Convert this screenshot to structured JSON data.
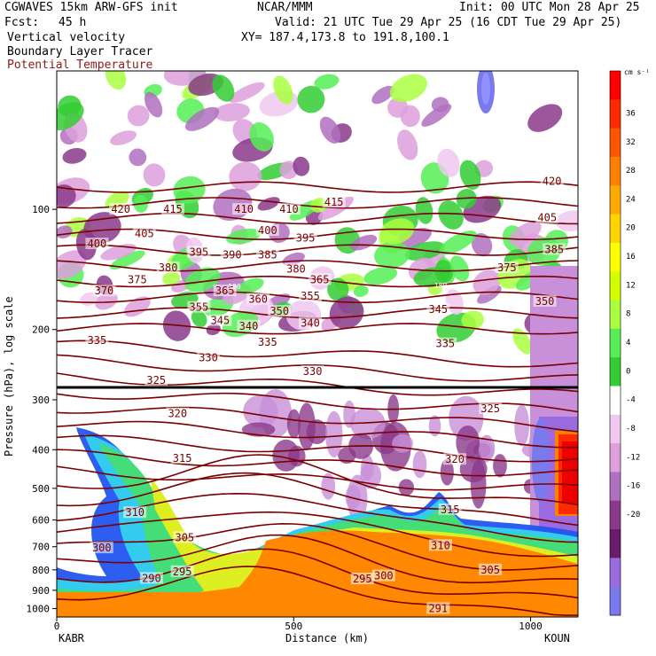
{
  "header": {
    "model": "CGWAVES 15km ARW-GFS init",
    "org": "NCAR/MMM",
    "init": "Init: 00 UTC Mon 28 Apr 25",
    "fcst_label": "Fcst:",
    "fcst_value": "45 h",
    "valid": "Valid: 21 UTC Tue 29 Apr 25 (16 CDT Tue 29 Apr 25)",
    "field1": "Vertical velocity",
    "field2": "Boundary Layer Tracer",
    "field3": "Potential Temperature",
    "xy": "XY= 187.4,173.8 to 191.8,100.1"
  },
  "axes": {
    "ylabel": "Pressure (hPa), log scale",
    "xlabel": "Distance (km)",
    "left_station": "KABR",
    "right_station": "KOUN"
  },
  "colorbar": {
    "units": "cm s⁻¹",
    "ticks": [
      "36",
      "32",
      "28",
      "24",
      "20",
      "16",
      "12",
      "8",
      "4",
      "0",
      "-4",
      "-8",
      "-12",
      "-16",
      "-20"
    ],
    "colors": [
      "#ff0000",
      "#ff2a00",
      "#ff5500",
      "#ff7f00",
      "#ffaa00",
      "#ffd400",
      "#ffff00",
      "#d4ff00",
      "#aaff40",
      "#55ee55",
      "#33cc33",
      "#ffffff",
      "#f0c8f0",
      "#dda0dd",
      "#b070c0",
      "#8b3a8b",
      "#6a1b6a",
      "#9a6adf",
      "#7a7aee"
    ]
  },
  "colors": {
    "theta": "#7a0000",
    "tropopause": "#000000"
  },
  "chart_data": {
    "type": "heatmap",
    "title": "Vertical velocity",
    "xlabel": "Distance (km)",
    "ylabel": "Pressure (hPa), log scale",
    "x_ticks": [
      "0",
      "500",
      "1000"
    ],
    "xlim": [
      0,
      1100
    ],
    "y_ticks": [
      "100",
      "200",
      "300",
      "400",
      "500",
      "600",
      "700",
      "800",
      "900",
      "1000"
    ],
    "y_scale": "log",
    "ylim": [
      1050,
      45
    ],
    "theta_contours": [
      {
        "label": "420",
        "x": 135,
        "p": 100
      },
      {
        "label": "415",
        "x": 245,
        "p": 100
      },
      {
        "label": "410",
        "x": 395,
        "p": 100
      },
      {
        "label": "410",
        "x": 490,
        "p": 100
      },
      {
        "label": "415",
        "x": 585,
        "p": 96
      },
      {
        "label": "420",
        "x": 1045,
        "p": 85
      },
      {
        "label": "405",
        "x": 1035,
        "p": 105
      },
      {
        "label": "400",
        "x": 85,
        "p": 122
      },
      {
        "label": "405",
        "x": 185,
        "p": 115
      },
      {
        "label": "400",
        "x": 445,
        "p": 113
      },
      {
        "label": "395",
        "x": 525,
        "p": 118
      },
      {
        "label": "395",
        "x": 300,
        "p": 128
      },
      {
        "label": "390",
        "x": 370,
        "p": 130
      },
      {
        "label": "385",
        "x": 445,
        "p": 130
      },
      {
        "label": "385",
        "x": 1050,
        "p": 126
      },
      {
        "label": "380",
        "x": 235,
        "p": 140
      },
      {
        "label": "380",
        "x": 505,
        "p": 141
      },
      {
        "label": "375",
        "x": 170,
        "p": 150
      },
      {
        "label": "375",
        "x": 950,
        "p": 140
      },
      {
        "label": "370",
        "x": 100,
        "p": 160
      },
      {
        "label": "365",
        "x": 355,
        "p": 160
      },
      {
        "label": "365",
        "x": 555,
        "p": 150
      },
      {
        "label": "360",
        "x": 425,
        "p": 168
      },
      {
        "label": "355",
        "x": 300,
        "p": 176
      },
      {
        "label": "355",
        "x": 535,
        "p": 165
      },
      {
        "label": "350",
        "x": 470,
        "p": 180
      },
      {
        "label": "350",
        "x": 1030,
        "p": 170
      },
      {
        "label": "345",
        "x": 345,
        "p": 190
      },
      {
        "label": "345",
        "x": 805,
        "p": 178
      },
      {
        "label": "340",
        "x": 405,
        "p": 196
      },
      {
        "label": "340",
        "x": 535,
        "p": 193
      },
      {
        "label": "335",
        "x": 85,
        "p": 213
      },
      {
        "label": "335",
        "x": 445,
        "p": 215
      },
      {
        "label": "335",
        "x": 820,
        "p": 217
      },
      {
        "label": "330",
        "x": 320,
        "p": 235
      },
      {
        "label": "330",
        "x": 540,
        "p": 255
      },
      {
        "label": "325",
        "x": 210,
        "p": 268
      },
      {
        "label": "325",
        "x": 915,
        "p": 316
      },
      {
        "label": "320",
        "x": 255,
        "p": 325
      },
      {
        "label": "320",
        "x": 840,
        "p": 423
      },
      {
        "label": "315",
        "x": 265,
        "p": 420
      },
      {
        "label": "315",
        "x": 830,
        "p": 565
      },
      {
        "label": "310",
        "x": 165,
        "p": 575
      },
      {
        "label": "310",
        "x": 810,
        "p": 695
      },
      {
        "label": "305",
        "x": 270,
        "p": 664
      },
      {
        "label": "305",
        "x": 915,
        "p": 800
      },
      {
        "label": "300",
        "x": 95,
        "p": 705
      },
      {
        "label": "300",
        "x": 690,
        "p": 828
      },
      {
        "label": "295",
        "x": 645,
        "p": 843
      },
      {
        "label": "295",
        "x": 265,
        "p": 808
      },
      {
        "label": "290",
        "x": 200,
        "p": 840
      },
      {
        "label": "291",
        "x": 805,
        "p": 1000
      }
    ],
    "tropopause_labels": [
      {
        "label": "180",
        "x": 375,
        "p": 156
      },
      {
        "label": "180",
        "x": 810,
        "p": 155
      }
    ]
  }
}
